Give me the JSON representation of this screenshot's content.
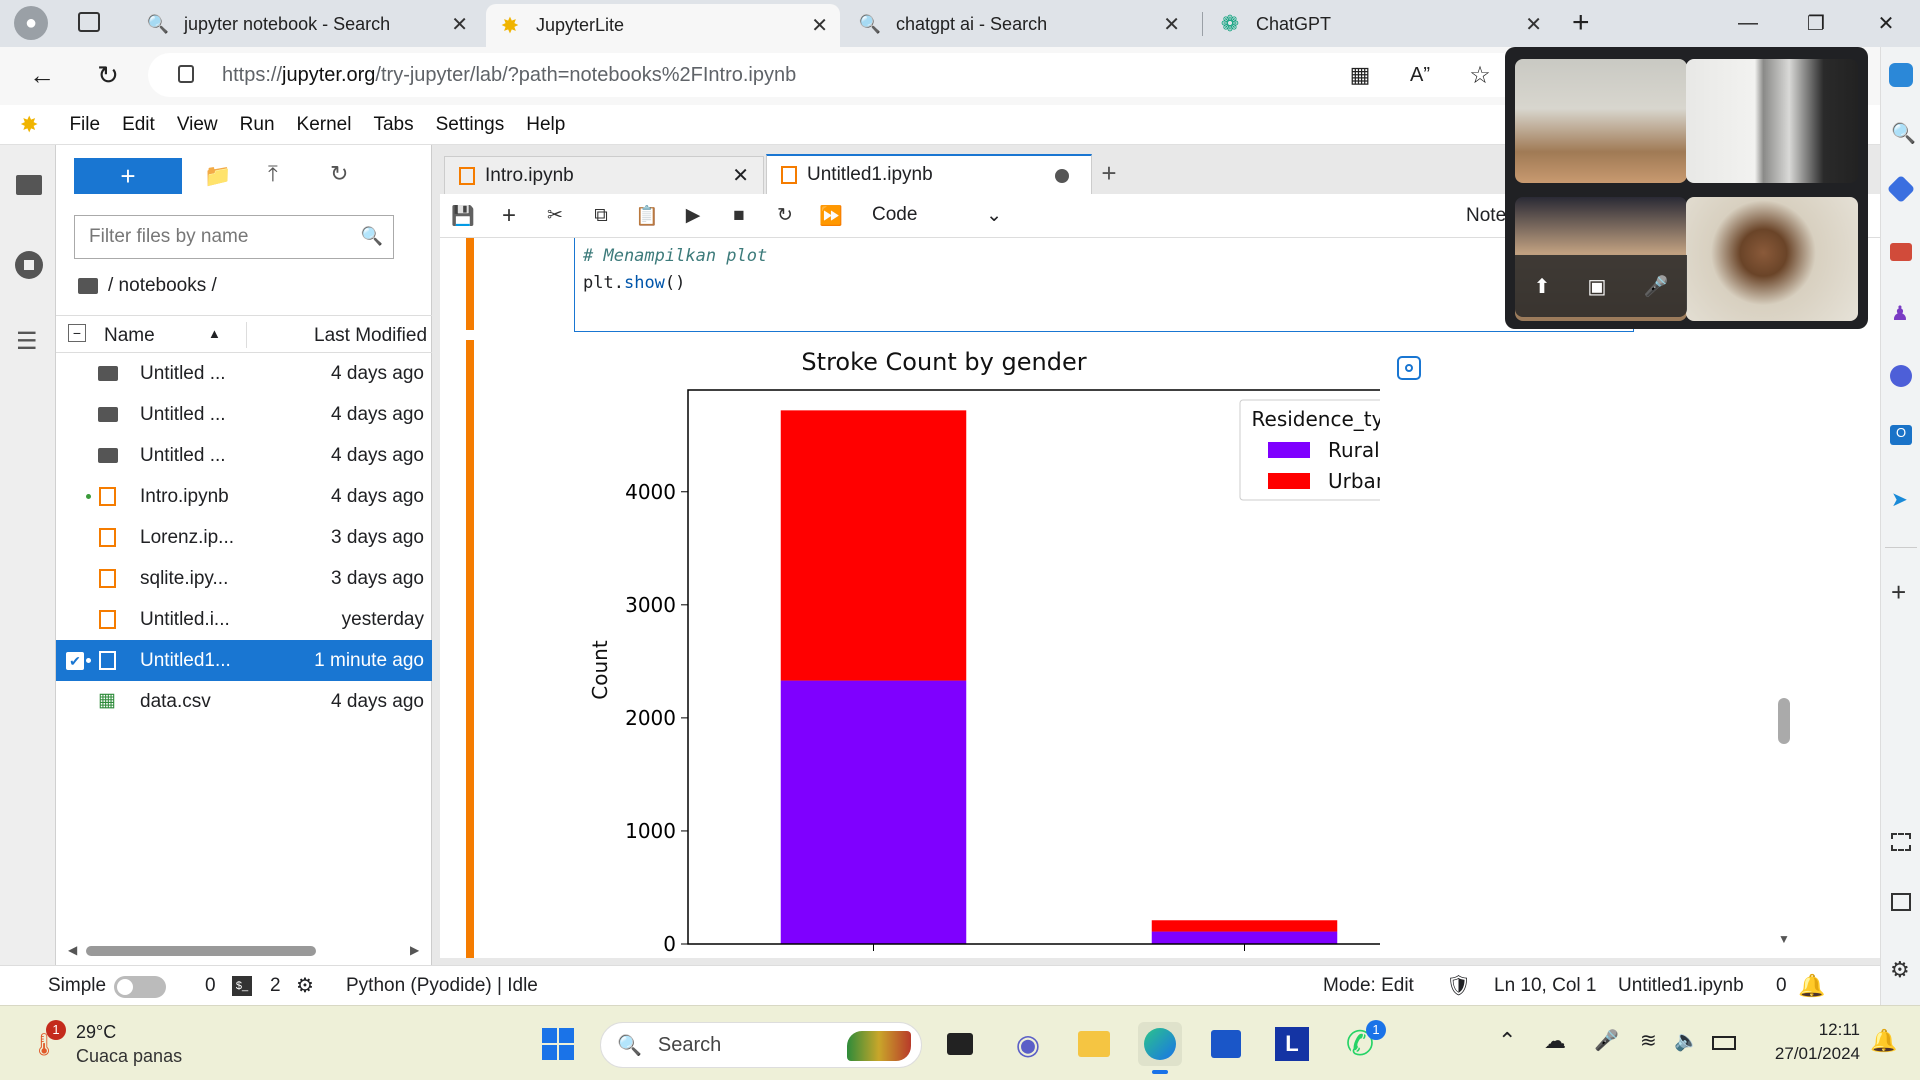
{
  "browser": {
    "tabs": [
      {
        "title": "jupyter notebook - Search",
        "icon": "search-icon"
      },
      {
        "title": "JupyterLite",
        "icon": "jupyter-icon"
      },
      {
        "title": "chatgpt ai - Search",
        "icon": "search-icon"
      },
      {
        "title": "ChatGPT",
        "icon": "chatgpt-icon"
      }
    ],
    "url_prefix": "https://",
    "url_domain": "jupyter.org",
    "url_path": "/try-jupyter/lab/?path=notebooks%2FIntro.ipynb"
  },
  "menu": [
    "File",
    "Edit",
    "View",
    "Run",
    "Kernel",
    "Tabs",
    "Settings",
    "Help"
  ],
  "filebrowser": {
    "filter_placeholder": "Filter files by name",
    "breadcrumb": "/ notebooks /",
    "col_name": "Name",
    "col_modified": "Last Modified",
    "files": [
      {
        "name": "Untitled ...",
        "modified": "4 days ago",
        "type": "folder"
      },
      {
        "name": "Untitled ...",
        "modified": "4 days ago",
        "type": "folder"
      },
      {
        "name": "Untitled ...",
        "modified": "4 days ago",
        "type": "folder"
      },
      {
        "name": "Intro.ipynb",
        "modified": "4 days ago",
        "type": "notebook",
        "running": true
      },
      {
        "name": "Lorenz.ip...",
        "modified": "3 days ago",
        "type": "notebook"
      },
      {
        "name": "sqlite.ipy...",
        "modified": "3 days ago",
        "type": "notebook"
      },
      {
        "name": "Untitled.i...",
        "modified": "yesterday",
        "type": "notebook"
      },
      {
        "name": "Untitled1...",
        "modified": "1 minute ago",
        "type": "notebook",
        "selected": true,
        "running": true
      },
      {
        "name": "data.csv",
        "modified": "4 days ago",
        "type": "csv"
      }
    ]
  },
  "notebook": {
    "tabs": [
      {
        "title": "Intro.ipynb"
      },
      {
        "title": "Untitled1.ipynb",
        "dirty": true
      }
    ],
    "cell_type": "Code",
    "toolbar_right": "Note",
    "code_comment": "# Menampilkan plot",
    "code_obj": "plt",
    "code_func": "show",
    "code_parens": "()"
  },
  "chart_data": {
    "type": "bar",
    "stacked": true,
    "title": "Stroke Count by gender",
    "xlabel": "",
    "ylabel": "Count",
    "ylim": [
      0,
      4900
    ],
    "yticks": [
      0,
      1000,
      2000,
      3000,
      4000
    ],
    "categories": [
      "",
      ""
    ],
    "legend_title": "Residence_type",
    "legend_position": "top-right",
    "series": [
      {
        "name": "Rural",
        "color": "#7f00ff",
        "values": [
          2330,
          110
        ]
      },
      {
        "name": "Urban",
        "color": "#ff0000",
        "values": [
          2390,
          100
        ]
      }
    ]
  },
  "statusbar": {
    "mode_label": "Simple",
    "terminals": "0",
    "kernels": "2",
    "kernel_status": "Python (Pyodide) | Idle",
    "mode": "Mode: Edit",
    "position": "Ln 10, Col 1",
    "filename": "Untitled1.ipynb",
    "notifications": "0"
  },
  "taskbar": {
    "temperature": "29°C",
    "weather": "Cuaca panas",
    "weather_badge": "1",
    "search": "Search",
    "whatsapp_badge": "1",
    "time": "12:11",
    "date": "27/01/2024"
  },
  "colors": {
    "accent": "#1976d2",
    "cell_bar": "#f57c00"
  }
}
